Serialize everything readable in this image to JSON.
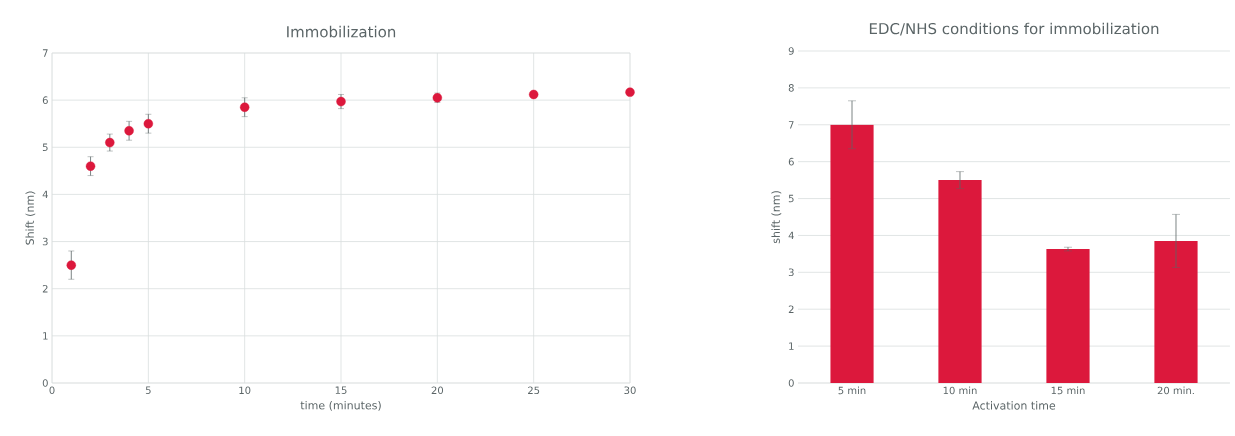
{
  "chart_data": [
    {
      "type": "scatter",
      "title": "Immobilization",
      "xlabel": "time (minutes)",
      "ylabel": "Shift (nm)",
      "x": [
        1,
        2,
        3,
        4,
        5,
        10,
        15,
        20,
        25,
        30
      ],
      "series": [
        {
          "color": "#dc183c",
          "values": [
            2.5,
            4.6,
            5.1,
            5.35,
            5.5,
            5.85,
            5.97,
            6.05,
            6.12,
            6.17
          ],
          "errors": [
            0.3,
            0.2,
            0.18,
            0.2,
            0.2,
            0.2,
            0.15,
            0.1,
            null,
            null
          ]
        }
      ],
      "xlim": [
        0,
        30
      ],
      "ylim": [
        0,
        7
      ],
      "xticks": [
        0,
        5,
        10,
        15,
        20,
        25,
        30
      ],
      "yticks": [
        0,
        1,
        2,
        3,
        4,
        5,
        6,
        7
      ],
      "grid": true,
      "marker": "circle"
    },
    {
      "type": "bar",
      "title": "EDC/NHS conditions for immobilization",
      "xlabel": "Activation time",
      "ylabel": "shift (nm)",
      "categories": [
        "5 min",
        "10 min",
        "15 min",
        "20 min."
      ],
      "series": [
        {
          "color": "#dc183c",
          "values": [
            7.0,
            5.5,
            3.63,
            3.85
          ],
          "errors": [
            0.65,
            0.23,
            0.05,
            0.72
          ]
        }
      ],
      "ylim": [
        0,
        9
      ],
      "yticks": [
        0,
        1,
        2,
        3,
        4,
        5,
        6,
        7,
        8,
        9
      ],
      "grid": "y"
    }
  ]
}
